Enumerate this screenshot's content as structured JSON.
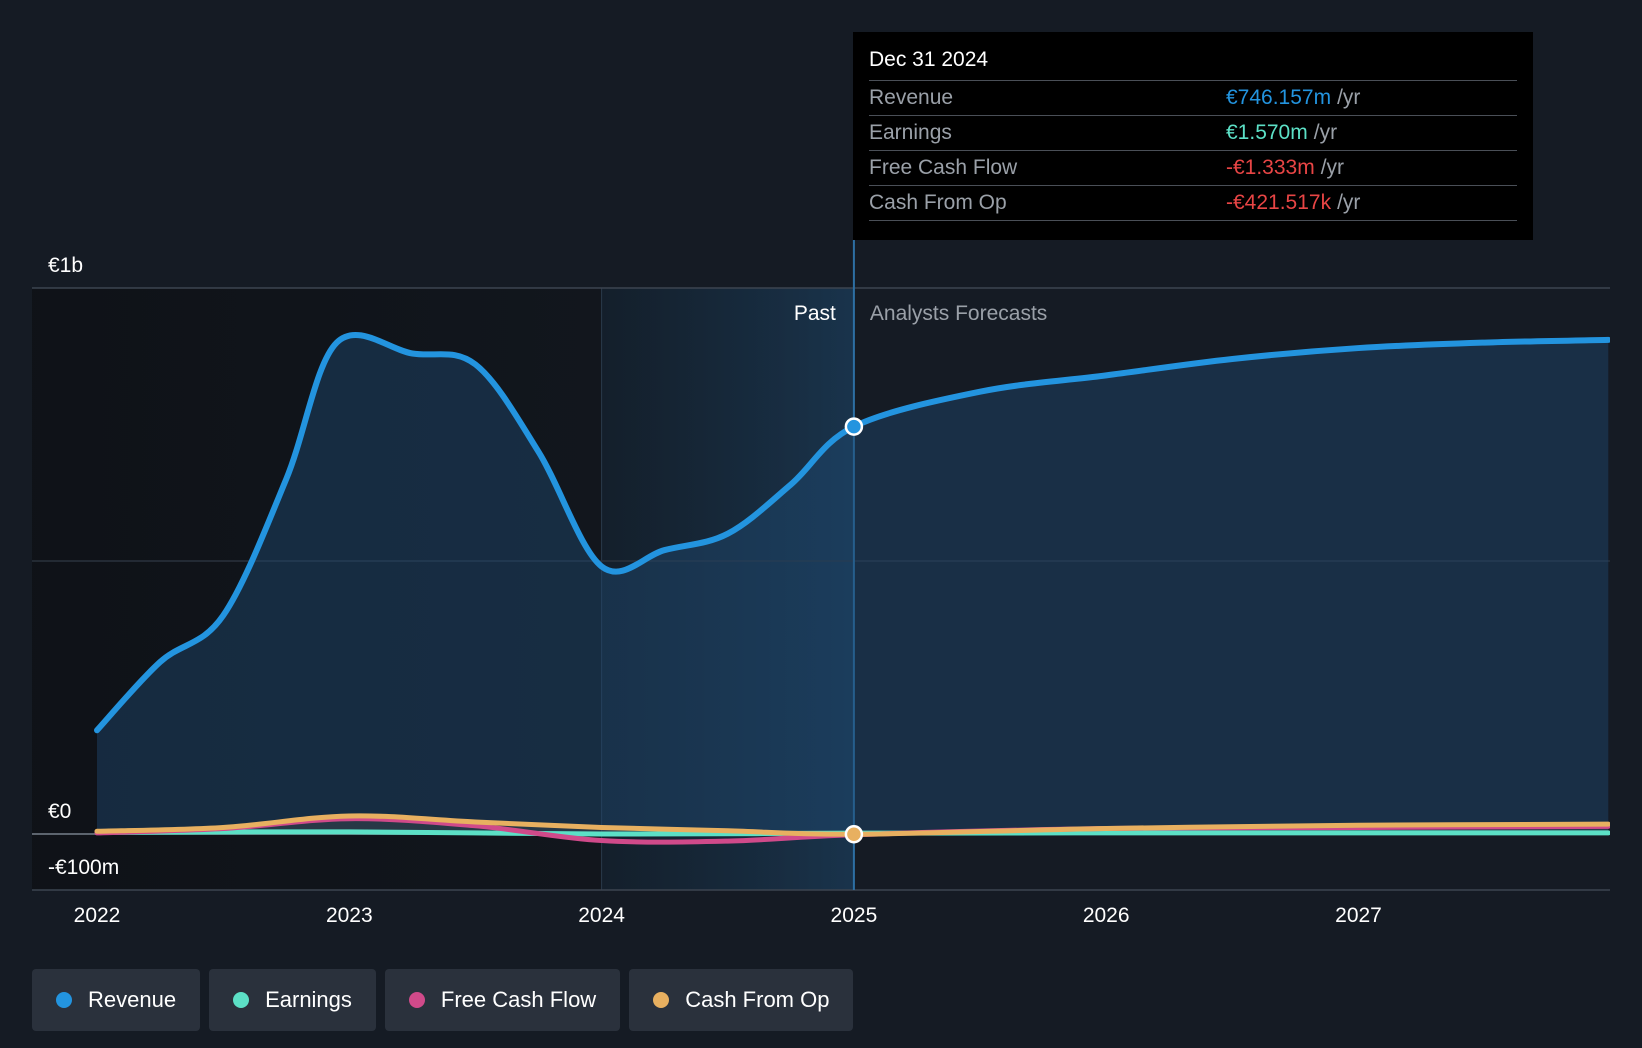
{
  "colors": {
    "background": "#151b24",
    "revenue": "#2394df",
    "earnings": "#5ce0c6",
    "free_cash_flow": "#d04a8a",
    "cash_from_op": "#e8b060",
    "negative": "#e84545"
  },
  "chart_data": {
    "type": "area",
    "x_label": "",
    "y_label": "",
    "x_ticks": [
      "2022",
      "2023",
      "2024",
      "2025",
      "2026",
      "2027"
    ],
    "y_ticks": [
      "€1b",
      "€0",
      "-€100m"
    ],
    "ylim_millions": [
      -100,
      1000
    ],
    "xlim_years": [
      2021.75,
      2027.99
    ],
    "grid": true,
    "divider_year": 2025.0,
    "past_label": "Past",
    "forecast_label": "Analysts Forecasts",
    "series": [
      {
        "name": "Revenue",
        "color": "#2394df",
        "points": [
          [
            2022.0,
            190
          ],
          [
            2022.25,
            315
          ],
          [
            2022.5,
            400
          ],
          [
            2022.75,
            650
          ],
          [
            2022.95,
            900
          ],
          [
            2023.25,
            880
          ],
          [
            2023.5,
            860
          ],
          [
            2023.75,
            700
          ],
          [
            2024.0,
            490
          ],
          [
            2024.25,
            520
          ],
          [
            2024.5,
            550
          ],
          [
            2024.75,
            640
          ],
          [
            2025.0,
            746.157
          ],
          [
            2025.5,
            810
          ],
          [
            2026.0,
            840
          ],
          [
            2026.5,
            870
          ],
          [
            2027.0,
            890
          ],
          [
            2027.5,
            900
          ],
          [
            2027.99,
            905
          ]
        ]
      },
      {
        "name": "Earnings",
        "color": "#5ce0c6",
        "points": [
          [
            2022.0,
            3
          ],
          [
            2023.0,
            4
          ],
          [
            2024.0,
            0
          ],
          [
            2025.0,
            1.57
          ],
          [
            2026.0,
            2
          ],
          [
            2027.0,
            2
          ],
          [
            2027.99,
            2
          ]
        ]
      },
      {
        "name": "Free Cash Flow",
        "color": "#d04a8a",
        "points": [
          [
            2022.0,
            2
          ],
          [
            2022.5,
            10
          ],
          [
            2023.0,
            28
          ],
          [
            2023.5,
            15
          ],
          [
            2024.0,
            -12
          ],
          [
            2024.5,
            -13
          ],
          [
            2025.0,
            -1.333
          ],
          [
            2026.0,
            10
          ],
          [
            2027.0,
            12
          ],
          [
            2027.99,
            14
          ]
        ]
      },
      {
        "name": "Cash From Op",
        "color": "#e8b060",
        "points": [
          [
            2022.0,
            5
          ],
          [
            2022.5,
            12
          ],
          [
            2023.0,
            33
          ],
          [
            2023.5,
            22
          ],
          [
            2024.0,
            12
          ],
          [
            2024.5,
            6
          ],
          [
            2025.0,
            -0.421517
          ],
          [
            2026.0,
            10
          ],
          [
            2027.0,
            16
          ],
          [
            2027.99,
            18
          ]
        ]
      }
    ]
  },
  "tooltip": {
    "date": "Dec 31 2024",
    "unit": "/yr",
    "rows": [
      {
        "label": "Revenue",
        "value": "€746.157m",
        "color": "#2394df"
      },
      {
        "label": "Earnings",
        "value": "€1.570m",
        "color": "#5ce0c6"
      },
      {
        "label": "Free Cash Flow",
        "value": "-€1.333m",
        "color": "#e84545"
      },
      {
        "label": "Cash From Op",
        "value": "-€421.517k",
        "color": "#e84545"
      }
    ]
  },
  "legend": [
    {
      "label": "Revenue",
      "color": "#2394df"
    },
    {
      "label": "Earnings",
      "color": "#5ce0c6"
    },
    {
      "label": "Free Cash Flow",
      "color": "#d04a8a"
    },
    {
      "label": "Cash From Op",
      "color": "#e8b060"
    }
  ]
}
